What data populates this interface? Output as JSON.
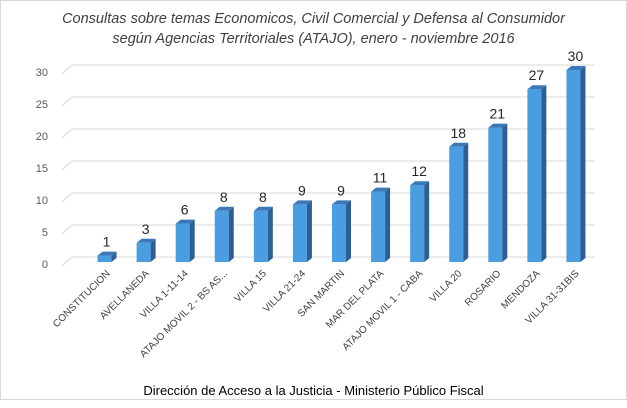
{
  "chart_data": {
    "type": "bar",
    "title": "Consultas sobre temas Economicos, Civil Comercial y Defensa al Consumidor",
    "subtitle": "según Agencias Territoriales (ATAJO), enero - noviembre 2016",
    "categories": [
      "CONSTITUCION",
      "AVELLANEDA",
      "VILLA 1-11-14",
      "ATAJO MOVIL 2 - BS AS...",
      "VILLA 15",
      "VILLA 21-24",
      "SAN MARTIN",
      "MAR DEL PLATA",
      "ATAJO MOVIL 1 - CABA",
      "VILLA 20",
      "ROSARIO",
      "MENDOZA",
      "VILLA 31-31BIS"
    ],
    "values": [
      1,
      3,
      6,
      8,
      8,
      9,
      9,
      11,
      12,
      18,
      21,
      27,
      30
    ],
    "xlabel": "",
    "ylabel": "",
    "ylim": [
      0,
      30
    ],
    "yticks": [
      0,
      5,
      10,
      15,
      20,
      25,
      30
    ],
    "grid": true,
    "legend": "none",
    "bar_style": "3d-column",
    "colors": {
      "bar_front": "#4a9de0",
      "bar_side": "#2e5f94",
      "bar_top": "#3a78b8",
      "grid": "#d9d9d9"
    }
  },
  "footer": "Dirección de Acceso a la Justicia - Ministerio Público Fiscal"
}
